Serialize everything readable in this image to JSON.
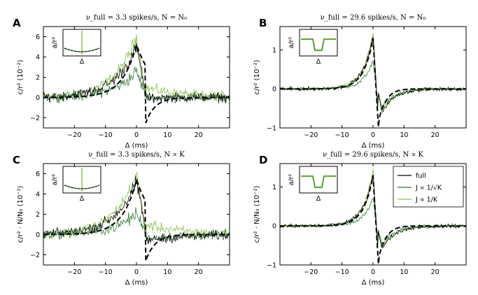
{
  "colors": {
    "full": "#000000",
    "sqrt": "#2e7d32",
    "inv": "#8bc34a",
    "dashed": "#000000"
  },
  "legend": {
    "entries": [
      "full",
      "J ∝ 1/√K",
      "J ∝ 1/K"
    ]
  },
  "chart_data": [
    {
      "panel": "A",
      "type": "line",
      "title": "ν_full = 3.3 spikes/s, N = N₀",
      "xlabel": "Δ (ms)",
      "ylabel": "c/r² (10⁻²)",
      "xlim": [
        -30,
        30
      ],
      "ylim": [
        -3,
        7
      ],
      "xticks": [
        -20,
        -10,
        0,
        10,
        20
      ],
      "yticks": [
        -2,
        0,
        2,
        4,
        6
      ],
      "shape": "asym",
      "amp": {
        "full": 5.0,
        "sqrt": 2.6,
        "inv": 6.0,
        "dashed": 5.2,
        "neg": -2.5
      },
      "series": [
        {
          "name": "full",
          "peak_at": 0,
          "peak": 5.0,
          "tail_after_3ms": 0
        },
        {
          "name": "J ∝ 1/√K",
          "peak_at": 0,
          "peak": 2.6,
          "tail_after_3ms": 0
        },
        {
          "name": "J ∝ 1/K",
          "peak_at": 0,
          "peak": 6.0,
          "tail_after_3ms": 1.0
        },
        {
          "name": "theory",
          "peak_at": 0,
          "peak": 5.2,
          "min_after_3ms": -2.5
        }
      ],
      "inset": {
        "ylabel": "a/r²",
        "xlabel": "Δ"
      }
    },
    {
      "panel": "B",
      "type": "line",
      "title": "ν_full = 29.6 spikes/s, N = N₀",
      "xlabel": "Δ (ms)",
      "ylabel": "c/r² (10⁻²)",
      "xlim": [
        -30,
        30
      ],
      "ylim": [
        -1,
        1.6
      ],
      "xticks": [
        -20,
        -10,
        0,
        10,
        20
      ],
      "yticks": [
        -1,
        0,
        1
      ],
      "shape": "anti",
      "amp": {
        "full": 1.35,
        "sqrt": 0.72,
        "inv": 1.45,
        "dashed": 1.3,
        "neg": -0.75
      },
      "series": [
        {
          "name": "full",
          "peak_at": 0,
          "peak": 1.35,
          "trough_at": 2,
          "trough": -0.75
        },
        {
          "name": "J ∝ 1/√K",
          "peak_at": 0,
          "peak": 0.72,
          "trough_at": 2,
          "trough": -0.6
        },
        {
          "name": "J ∝ 1/K",
          "peak_at": 0,
          "peak": 1.45,
          "trough_at": 2,
          "trough": -0.7
        },
        {
          "name": "theory",
          "peak_at": 0,
          "peak": 1.3,
          "trough_at": 2,
          "trough": -0.75
        }
      ],
      "inset": {
        "ylabel": "a/r²",
        "xlabel": "Δ"
      }
    },
    {
      "panel": "C",
      "type": "line",
      "title": "ν_full = 3.3 spikes/s, N ∝ K",
      "xlabel": "Δ (ms)",
      "ylabel": "c/r² · N/N₀ (10⁻²)",
      "xlim": [
        -30,
        30
      ],
      "ylim": [
        -3,
        7
      ],
      "xticks": [
        -20,
        -10,
        0,
        10,
        20
      ],
      "yticks": [
        -2,
        0,
        2,
        4,
        6
      ],
      "shape": "asym",
      "amp": {
        "full": 5.2,
        "sqrt": 2.1,
        "inv": 6.0,
        "dashed": 5.4,
        "neg": -2.6
      },
      "series": [
        {
          "name": "full",
          "peak_at": 0,
          "peak": 5.2,
          "tail_after_3ms": -0.6
        },
        {
          "name": "J ∝ 1/√K",
          "peak_at": 0,
          "peak": 2.1,
          "tail_after_3ms": -0.4
        },
        {
          "name": "J ∝ 1/K",
          "peak_at": 0,
          "peak": 6.0,
          "tail_after_3ms": 1.0
        },
        {
          "name": "theory",
          "peak_at": 0,
          "peak": 5.4,
          "min_after_3ms": -2.6
        }
      ],
      "inset": {
        "ylabel": "a/r²",
        "xlabel": "Δ"
      }
    },
    {
      "panel": "D",
      "type": "line",
      "title": "ν_full = 29.6 spikes/s, N ∝ K",
      "xlabel": "Δ (ms)",
      "ylabel": "c/r² · N/N₀ (10⁻²)",
      "xlim": [
        -30,
        30
      ],
      "ylim": [
        -1,
        1.6
      ],
      "xticks": [
        -20,
        -10,
        0,
        10,
        20
      ],
      "yticks": [
        -1,
        0,
        1
      ],
      "shape": "anti",
      "amp": {
        "full": 1.35,
        "sqrt": 0.7,
        "inv": 1.45,
        "dashed": 1.3,
        "neg": -0.75
      },
      "series": [
        {
          "name": "full",
          "peak_at": 0,
          "peak": 1.35,
          "trough_at": 2,
          "trough": -0.75
        },
        {
          "name": "J ∝ 1/√K",
          "peak_at": 0,
          "peak": 0.7,
          "trough_at": 2,
          "trough": -0.6
        },
        {
          "name": "J ∝ 1/K",
          "peak_at": 0,
          "peak": 1.45,
          "trough_at": 2,
          "trough": -0.7
        },
        {
          "name": "theory",
          "peak_at": 0,
          "peak": 1.3,
          "trough_at": 2,
          "trough": -0.75
        }
      ],
      "inset": {
        "ylabel": "a/r²",
        "xlabel": "Δ"
      },
      "legend": true
    }
  ]
}
